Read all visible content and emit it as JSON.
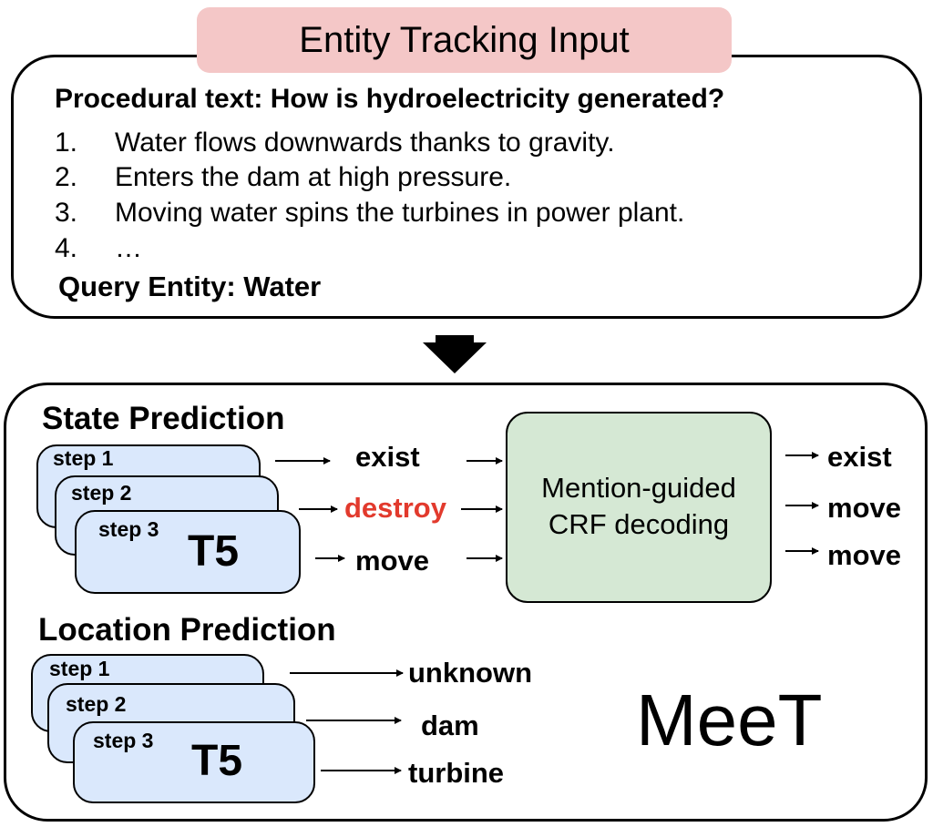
{
  "input_panel": {
    "title": "Entity Tracking Input",
    "procedural_title": "Procedural text: How is hydroelectricity generated?",
    "steps": [
      {
        "num": "1.",
        "text": "Water flows downwards thanks to gravity."
      },
      {
        "num": "2.",
        "text": "Enters the dam at high pressure."
      },
      {
        "num": "3.",
        "text": "Moving water spins the turbines in power plant."
      },
      {
        "num": "4.",
        "text": "…"
      }
    ],
    "query_entity": "Query Entity: Water"
  },
  "state_prediction": {
    "title": "State Prediction",
    "cards": [
      "step 1",
      "step 2",
      "step 3"
    ],
    "model": "T5",
    "outputs": [
      "exist",
      "destroy",
      "move"
    ],
    "highlight_color": "#e23a2d",
    "decoder": {
      "line1": "Mention-guided",
      "line2": "CRF decoding"
    },
    "final_outputs": [
      "exist",
      "move",
      "move"
    ]
  },
  "location_prediction": {
    "title": "Location Prediction",
    "cards": [
      "step 1",
      "step 2",
      "step 3"
    ],
    "model": "T5",
    "outputs": [
      "unknown",
      "dam",
      "turbine"
    ]
  },
  "model_name": "MeeT",
  "colors": {
    "title_pill": "#f4c7c7",
    "t5_card": "#dae8fc",
    "crf_box": "#d5e8d4"
  }
}
